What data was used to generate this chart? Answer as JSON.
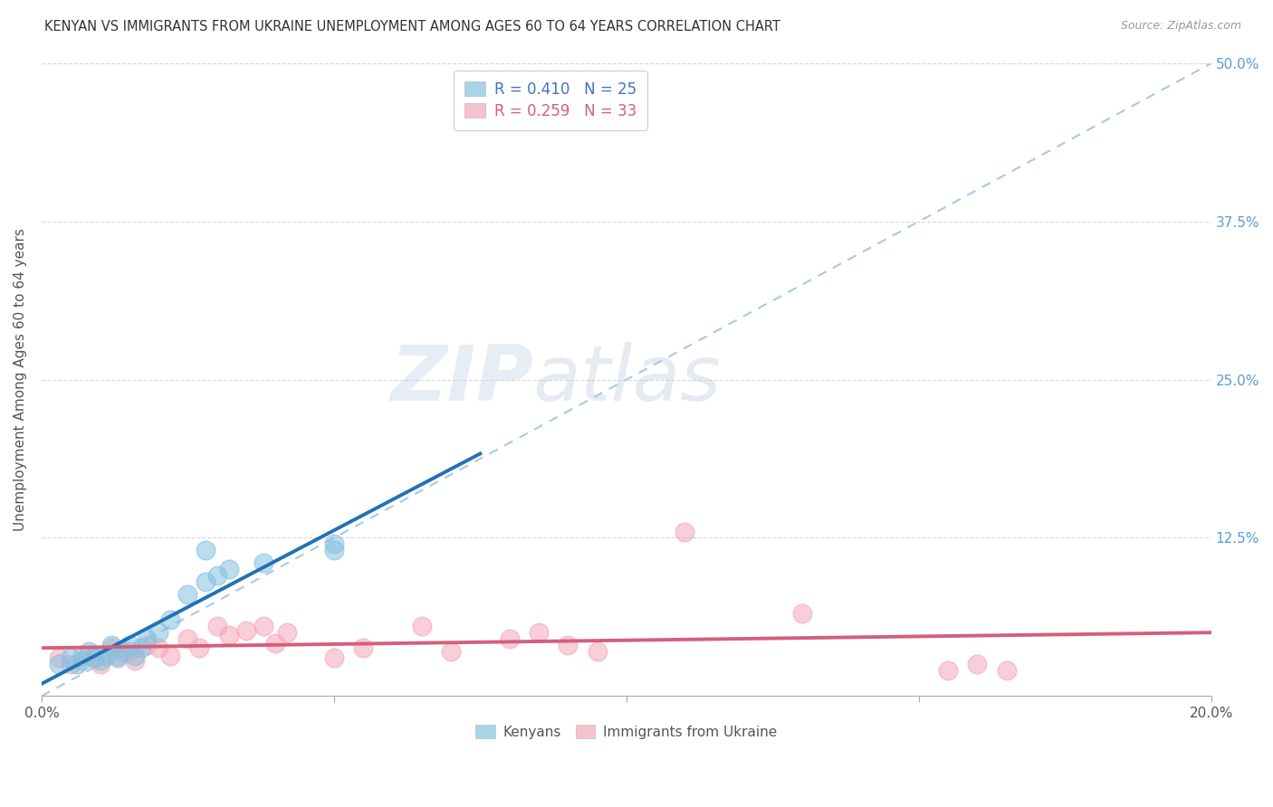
{
  "title": "KENYAN VS IMMIGRANTS FROM UKRAINE UNEMPLOYMENT AMONG AGES 60 TO 64 YEARS CORRELATION CHART",
  "source": "Source: ZipAtlas.com",
  "ylabel": "Unemployment Among Ages 60 to 64 years",
  "xlim": [
    0.0,
    0.2
  ],
  "ylim": [
    0.0,
    0.5
  ],
  "xticks": [
    0.0,
    0.05,
    0.1,
    0.15,
    0.2
  ],
  "yticks": [
    0.0,
    0.125,
    0.25,
    0.375,
    0.5
  ],
  "xticklabels": [
    "0.0%",
    "",
    "",
    "",
    "20.0%"
  ],
  "yticklabels_right": [
    "",
    "12.5%",
    "25.0%",
    "37.5%",
    "50.0%"
  ],
  "R_kenyan": 0.41,
  "N_kenyan": 25,
  "R_ukraine": 0.259,
  "N_ukraine": 33,
  "kenyan_color": "#85c1e0",
  "ukraine_color": "#f4a7b9",
  "kenyan_line_color": "#2171b5",
  "ukraine_line_color": "#d45f7a",
  "trendline_dashed_color": "#a8c8e8",
  "background_color": "#ffffff",
  "watermark_zip": "ZIP",
  "watermark_atlas": "atlas",
  "kenyan_x": [
    0.003,
    0.005,
    0.006,
    0.007,
    0.008,
    0.009,
    0.01,
    0.011,
    0.012,
    0.013,
    0.014,
    0.015,
    0.016,
    0.017,
    0.018,
    0.02,
    0.022,
    0.025,
    0.028,
    0.03,
    0.032,
    0.038,
    0.05,
    0.05,
    0.028
  ],
  "kenyan_y": [
    0.025,
    0.03,
    0.025,
    0.028,
    0.035,
    0.03,
    0.028,
    0.032,
    0.04,
    0.03,
    0.035,
    0.04,
    0.032,
    0.038,
    0.045,
    0.05,
    0.06,
    0.08,
    0.09,
    0.095,
    0.1,
    0.105,
    0.115,
    0.12,
    0.115
  ],
  "ukraine_x": [
    0.003,
    0.005,
    0.007,
    0.009,
    0.01,
    0.012,
    0.013,
    0.015,
    0.016,
    0.018,
    0.02,
    0.022,
    0.025,
    0.027,
    0.03,
    0.032,
    0.035,
    0.038,
    0.04,
    0.042,
    0.05,
    0.055,
    0.065,
    0.07,
    0.08,
    0.085,
    0.09,
    0.095,
    0.11,
    0.13,
    0.155,
    0.16,
    0.165
  ],
  "ukraine_y": [
    0.03,
    0.025,
    0.032,
    0.03,
    0.025,
    0.038,
    0.032,
    0.035,
    0.028,
    0.04,
    0.038,
    0.032,
    0.045,
    0.038,
    0.055,
    0.048,
    0.052,
    0.055,
    0.042,
    0.05,
    0.03,
    0.038,
    0.055,
    0.035,
    0.045,
    0.05,
    0.04,
    0.035,
    0.13,
    0.065,
    0.02,
    0.025,
    0.02
  ],
  "kenyan_trendline_x0": 0.0,
  "kenyan_trendline_x1": 0.075,
  "ukraine_trendline_x0": 0.0,
  "ukraine_trendline_x1": 0.2
}
